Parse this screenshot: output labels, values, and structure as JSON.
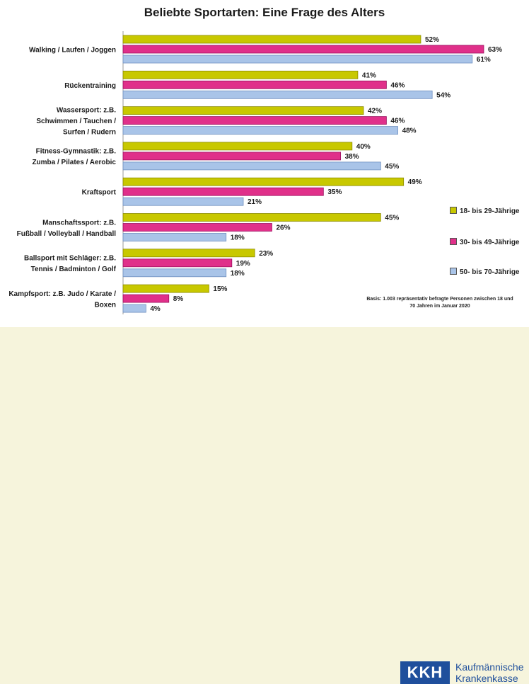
{
  "colors": {
    "series": [
      "#c8c800",
      "#e0308a",
      "#a9c4e8"
    ],
    "series_edge": [
      "#8c8c00",
      "#9c1060",
      "#6f8fbf"
    ]
  },
  "legend": {
    "items": [
      "18- bis 29-Jährige",
      "30- bis 49-Jährige",
      "50- bis 70-Jährige"
    ]
  },
  "note": {
    "line1": "Basis: 1.003 repräsentativ befragte Personen zwischen 18 und",
    "line2": "70 Jahren im Januar 2020"
  },
  "logo": {
    "abbrev": "KKH",
    "name_line1": "Kaufmännische",
    "name_line2": "Krankenkasse"
  },
  "chart_data": {
    "type": "bar",
    "orientation": "horizontal",
    "title": "Beliebte Sportarten: Eine Frage des Alters",
    "categories": [
      [
        "Walking / Laufen / Joggen"
      ],
      [
        "Rückentraining"
      ],
      [
        "Wassersport: z.B.",
        "Schwimmen / Tauchen /",
        "Surfen / Rudern"
      ],
      [
        "Fitness-Gymnastik: z.B.",
        "Zumba / Pilates / Aerobic"
      ],
      [
        "Kraftsport"
      ],
      [
        "Manschaftssport: z.B.",
        "Fußball / Volleyball / Handball"
      ],
      [
        "Ballsport mit Schläger: z.B.",
        "Tennis / Badminton / Golf"
      ],
      [
        "Kampfsport: z.B. Judo / Karate /",
        "Boxen"
      ]
    ],
    "series": [
      {
        "name": "18- bis 29-Jährige",
        "values": [
          52,
          41,
          42,
          40,
          49,
          45,
          23,
          15
        ],
        "labels": [
          "52%",
          "41%",
          "42%",
          "40%",
          "49%",
          "45%",
          "23%",
          "15%"
        ]
      },
      {
        "name": "30- bis 49-Jährige",
        "values": [
          63,
          46,
          46,
          38,
          35,
          26,
          19,
          8
        ],
        "labels": [
          "63%",
          "46%",
          "46%",
          "38%",
          "35%",
          "26%",
          "19%",
          "8%"
        ]
      },
      {
        "name": "50- bis 70-Jährige",
        "values": [
          61,
          54,
          48,
          45,
          21,
          18,
          18,
          4
        ],
        "labels": [
          "61%",
          "54%",
          "48%",
          "45%",
          "21%",
          "18%",
          "18%",
          "4%"
        ]
      }
    ],
    "xlim": [
      0,
      100
    ],
    "grid": false,
    "legend_position": "right"
  }
}
